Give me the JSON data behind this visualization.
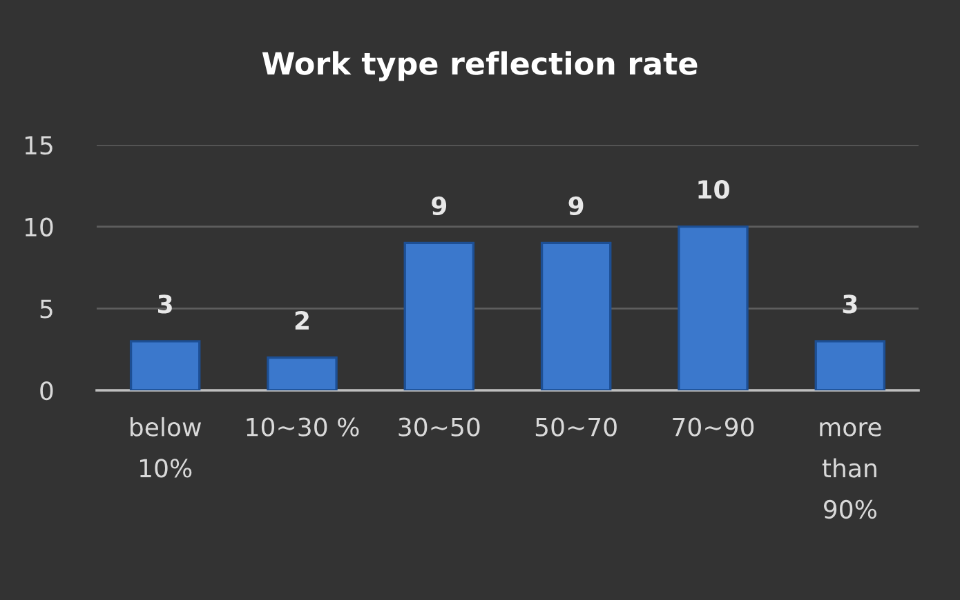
{
  "chart_data": {
    "type": "bar",
    "title": "Work type reflection rate",
    "categories": [
      "below 10%",
      "10~30 %",
      "30~50",
      "50~70",
      "70~90",
      "more than 90%"
    ],
    "values": [
      3,
      2,
      9,
      9,
      10,
      3
    ],
    "color": "#3b78cc",
    "ylim": [
      0,
      15
    ],
    "yticks": [
      0,
      5,
      10,
      15
    ],
    "grid": "y",
    "data_labels": true,
    "legend": false
  }
}
